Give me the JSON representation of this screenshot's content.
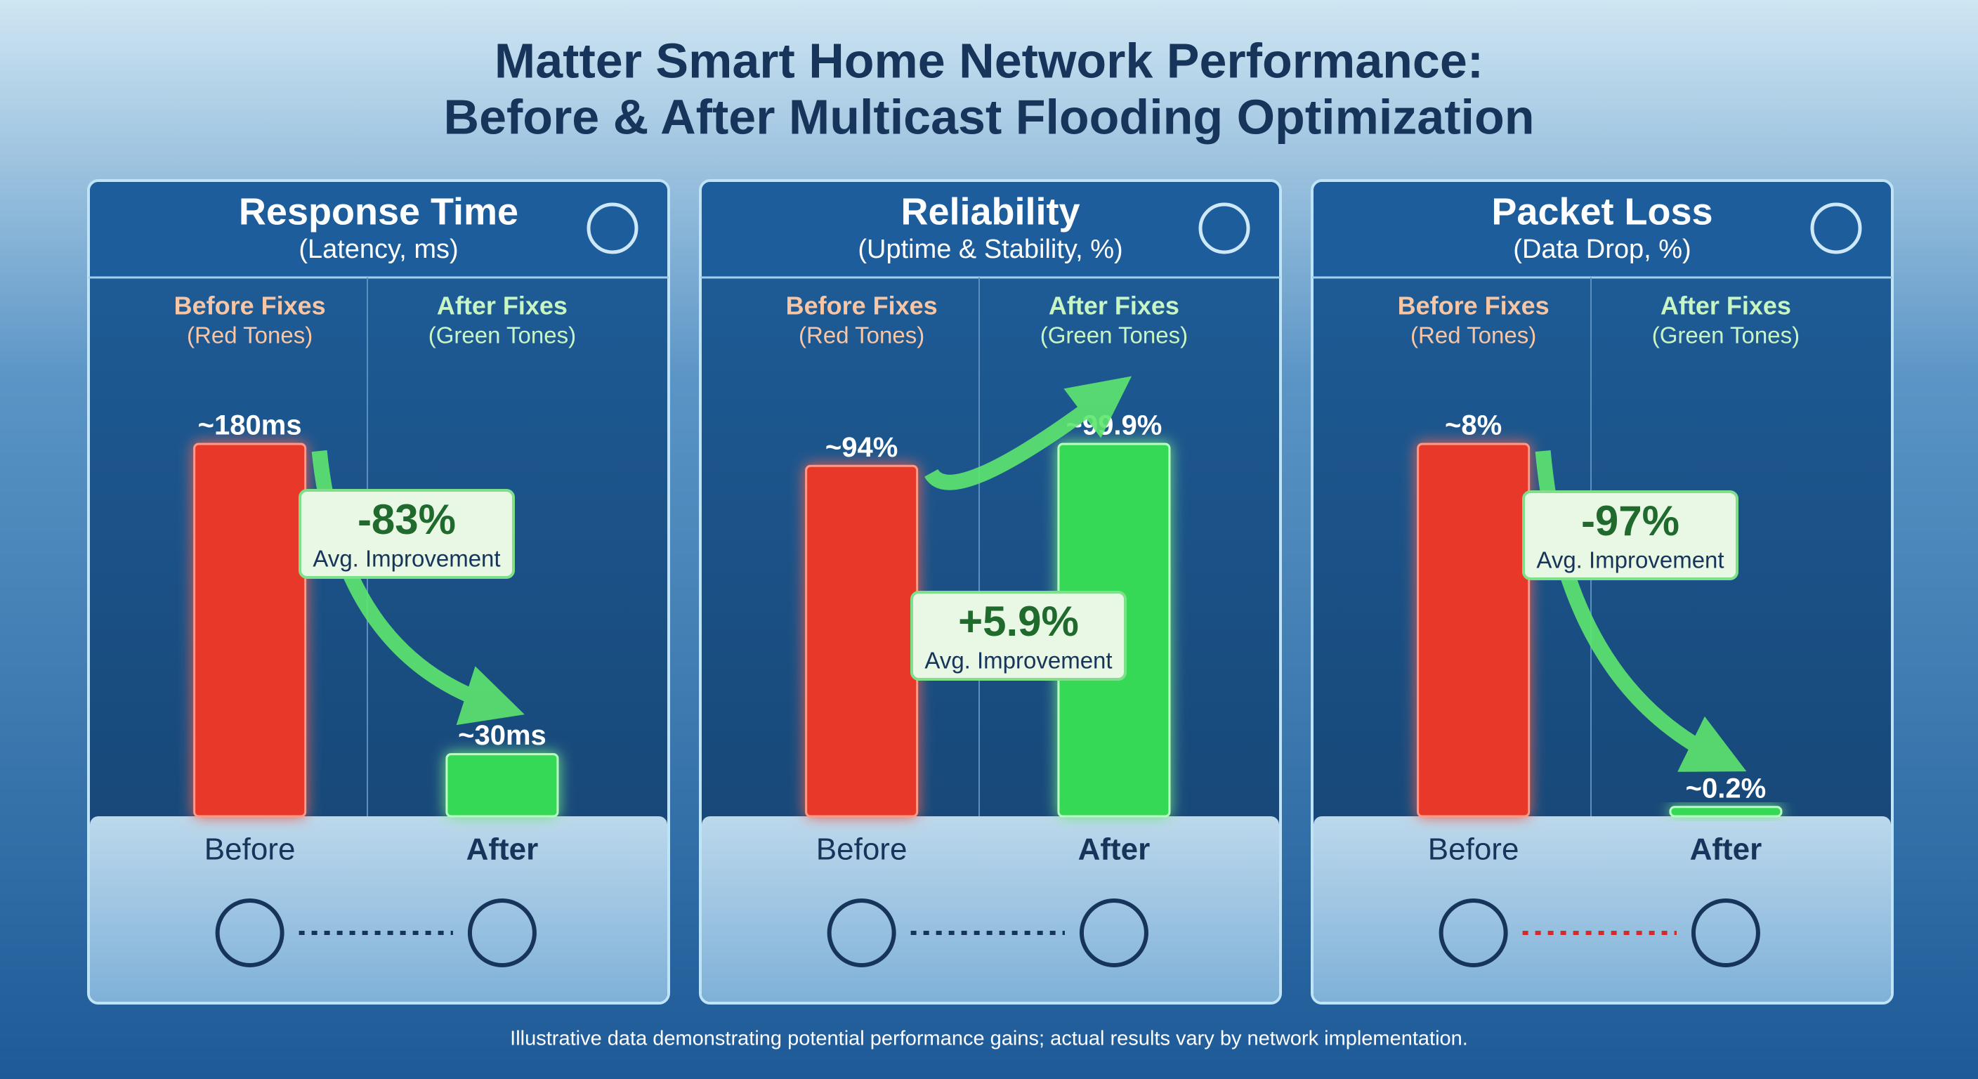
{
  "title": [
    "Matter Smart Home Network Performance:",
    "Before & After Multicast Flooding Optimization"
  ],
  "chart_data": [
    {
      "type": "bar",
      "title": "Response Time",
      "subtitle": "(Latency, ms)",
      "column_headers": [
        {
          "title": "Before Fixes",
          "subtitle": "(Red Tones)"
        },
        {
          "title": "After Fixes",
          "subtitle": "(Green Tones)"
        }
      ],
      "categories": [
        "Before",
        "After"
      ],
      "values": [
        180,
        30
      ],
      "value_labels": [
        "~180ms",
        "~30ms"
      ],
      "colors": [
        "#e8372b",
        "#35d957"
      ],
      "annotation": {
        "text": "-83%",
        "note": "Avg. Improvement"
      }
    },
    {
      "type": "bar",
      "title": "Reliability",
      "subtitle": "(Uptime & Stability, %)",
      "column_headers": [
        {
          "title": "Before Fixes",
          "subtitle": "(Red Tones)"
        },
        {
          "title": "After Fixes",
          "subtitle": "(Green Tones)"
        }
      ],
      "categories": [
        "Before",
        "After"
      ],
      "values": [
        94,
        99.9
      ],
      "value_labels": [
        "~94%",
        "~99.9%"
      ],
      "colors": [
        "#e8372b",
        "#35d957"
      ],
      "annotation": {
        "text": "+5.9%",
        "note": "Avg. Improvement"
      }
    },
    {
      "type": "bar",
      "title": "Packet Loss",
      "subtitle": "(Data Drop, %)",
      "column_headers": [
        {
          "title": "Before Fixes",
          "subtitle": "(Red Tones)"
        },
        {
          "title": "After Fixes",
          "subtitle": "(Green Tones)"
        }
      ],
      "categories": [
        "Before",
        "After"
      ],
      "values": [
        8,
        0.2
      ],
      "value_labels": [
        "~8%",
        "~0.2%"
      ],
      "colors": [
        "#e8372b",
        "#35d957"
      ],
      "annotation": {
        "text": "-97%",
        "note": "Avg. Improvement"
      }
    }
  ],
  "footnote": "Illustrative data demonstrating potential performance gains; actual results vary by network implementation."
}
